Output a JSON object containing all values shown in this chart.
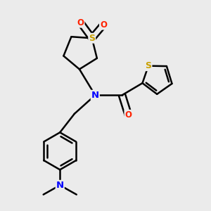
{
  "bg_color": "#ebebeb",
  "atom_colors": {
    "S": "#c8a000",
    "N": "#0000ff",
    "O": "#ff2200",
    "C": "#000000"
  },
  "bond_color": "#000000",
  "bond_width": 1.8,
  "dbo": 0.018
}
